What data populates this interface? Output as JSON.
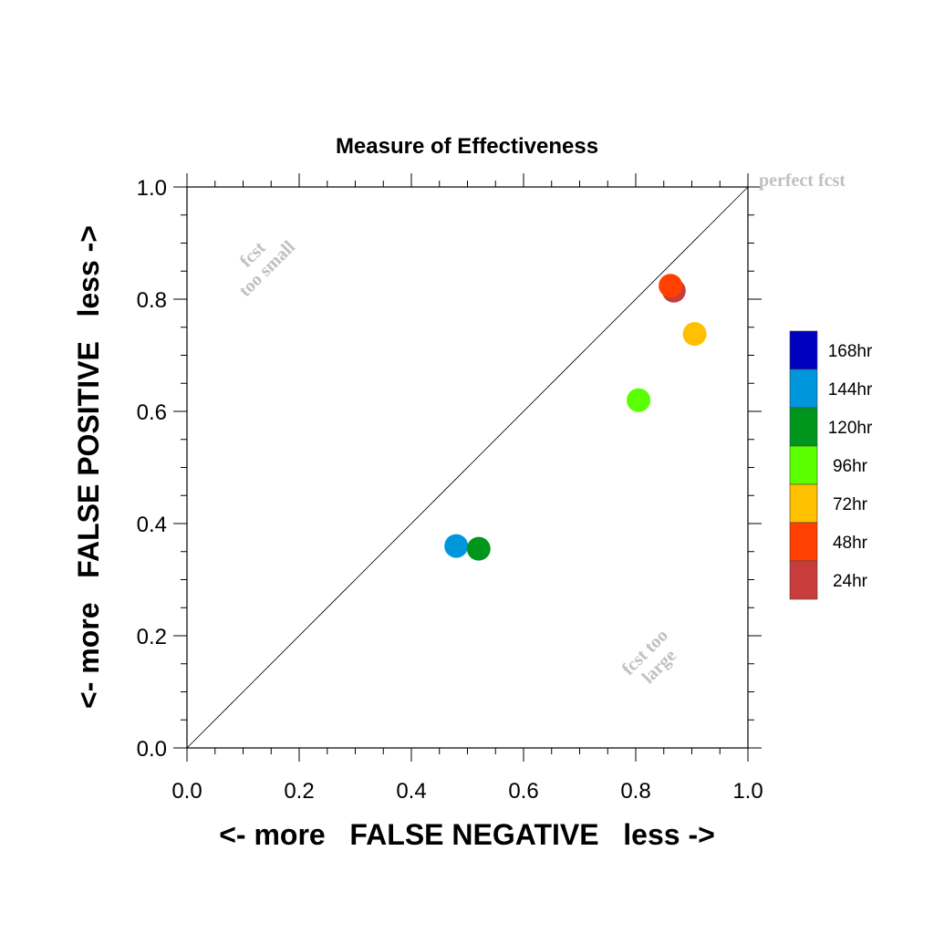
{
  "chart_data": {
    "type": "scatter",
    "title": "Measure of Effectiveness",
    "xlabel": "<- more   FALSE NEGATIVE   less ->",
    "ylabel": "<- more   FALSE POSITIVE   less ->",
    "xlim": [
      0.0,
      1.0
    ],
    "ylim": [
      0.0,
      1.0
    ],
    "x_ticks": [
      "0.0",
      "0.2",
      "0.4",
      "0.6",
      "0.8",
      "1.0"
    ],
    "y_ticks": [
      "0.0",
      "0.2",
      "0.4",
      "0.6",
      "0.8",
      "1.0"
    ],
    "grid": false,
    "diagonal_line": true,
    "annotations": {
      "perfect": "perfect fcst",
      "too_small_1": "fcst",
      "too_small_2": "too small",
      "too_large_1": "fcst too",
      "too_large_2": "large"
    },
    "legend_position": "right",
    "series": [
      {
        "name": "168hr",
        "color": "#0000c0",
        "points": []
      },
      {
        "name": "144hr",
        "color": "#0096dc",
        "points": [
          {
            "x": 0.48,
            "y": 0.36
          }
        ]
      },
      {
        "name": "120hr",
        "color": "#00961e",
        "points": [
          {
            "x": 0.52,
            "y": 0.355
          }
        ]
      },
      {
        "name": "96hr",
        "color": "#5aff00",
        "points": [
          {
            "x": 0.805,
            "y": 0.62
          }
        ]
      },
      {
        "name": "72hr",
        "color": "#ffc000",
        "points": [
          {
            "x": 0.905,
            "y": 0.738
          }
        ]
      },
      {
        "name": "48hr",
        "color": "#ff4000",
        "points": [
          {
            "x": 0.862,
            "y": 0.824
          }
        ]
      },
      {
        "name": "24hr",
        "color": "#c83c3c",
        "points": [
          {
            "x": 0.868,
            "y": 0.815
          }
        ]
      }
    ]
  }
}
